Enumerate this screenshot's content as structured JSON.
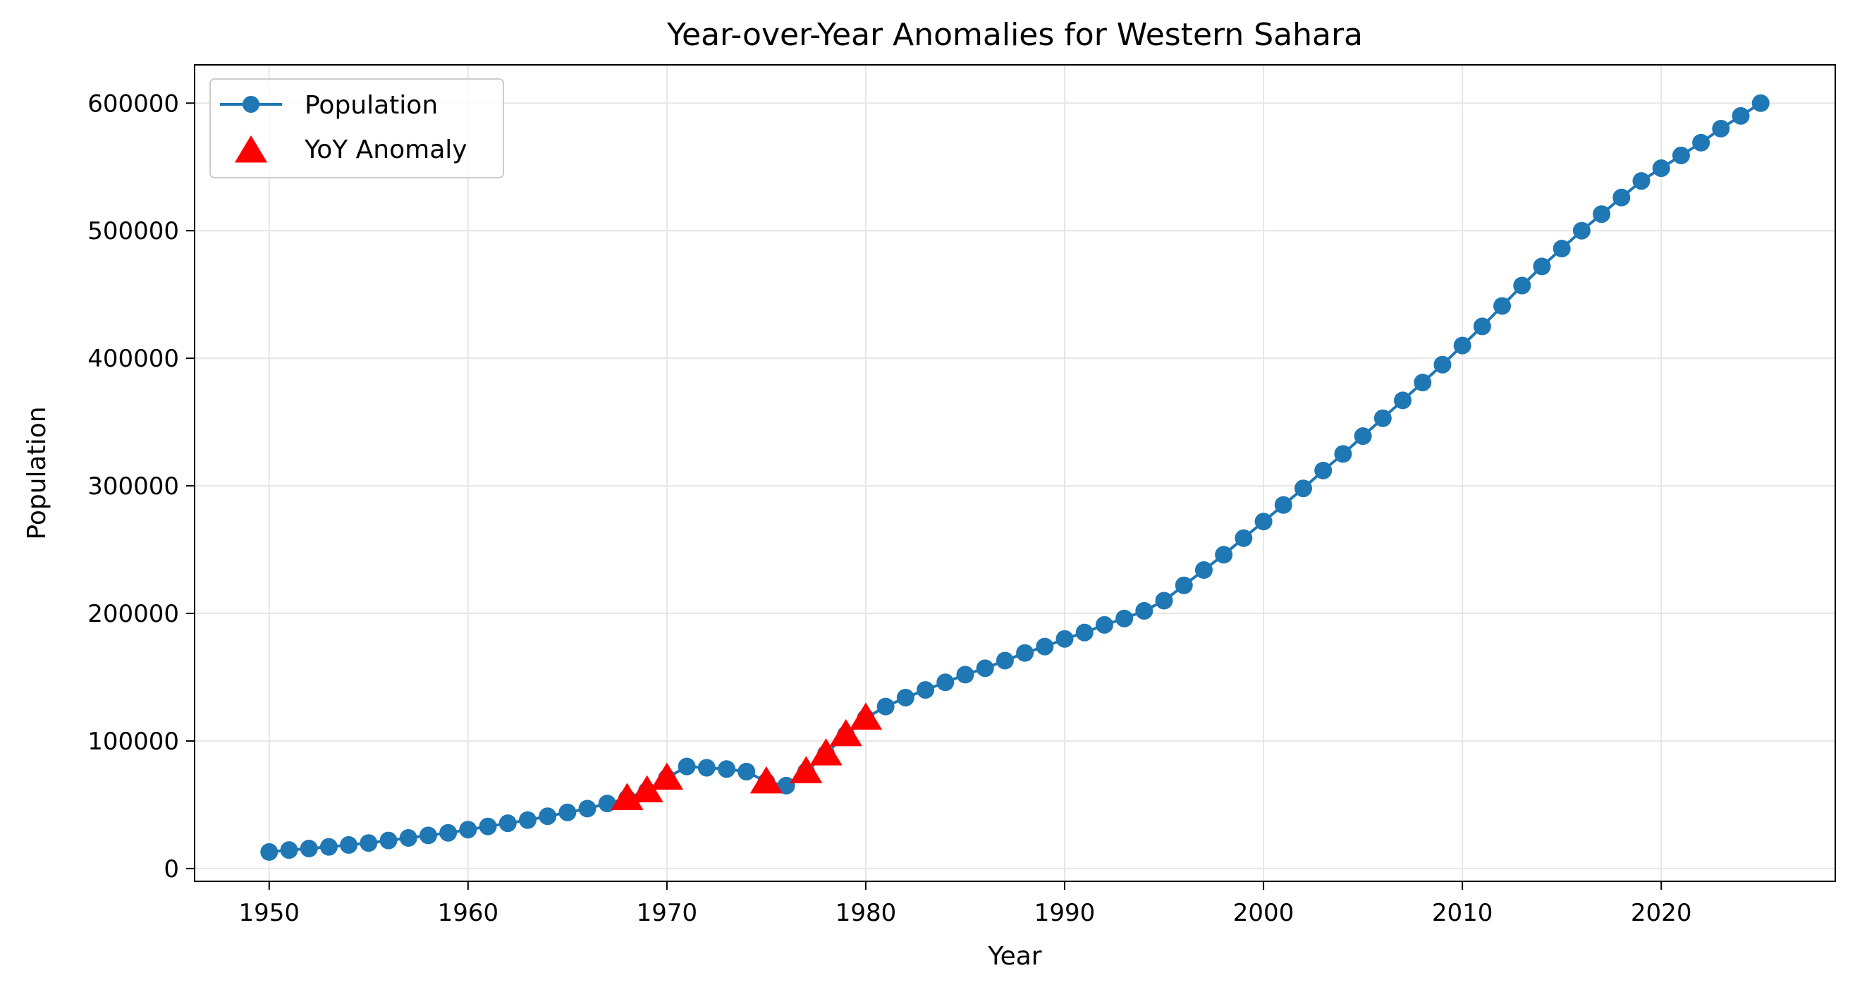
{
  "chart_data": {
    "type": "line",
    "title": "Year-over-Year Anomalies for Western Sahara",
    "xlabel": "Year",
    "ylabel": "Population",
    "xlim": [
      1946.25,
      2028.75
    ],
    "ylim": [
      -10000,
      630000
    ],
    "x_ticks": [
      1950,
      1960,
      1970,
      1980,
      1990,
      2000,
      2010,
      2020
    ],
    "y_ticks": [
      0,
      100000,
      200000,
      300000,
      400000,
      500000,
      600000
    ],
    "grid": true,
    "legend_position": "top-left",
    "colors": {
      "population": "#1f77b4",
      "anomaly": "#ff0000",
      "grid": "#e6e6e6"
    },
    "series": [
      {
        "name": "Population",
        "marker": "circle",
        "x": [
          1950,
          1951,
          1952,
          1953,
          1954,
          1955,
          1956,
          1957,
          1958,
          1959,
          1960,
          1961,
          1962,
          1963,
          1964,
          1965,
          1966,
          1967,
          1968,
          1969,
          1970,
          1971,
          1972,
          1973,
          1974,
          1975,
          1976,
          1977,
          1978,
          1979,
          1980,
          1981,
          1982,
          1983,
          1984,
          1985,
          1986,
          1987,
          1988,
          1989,
          1990,
          1991,
          1992,
          1993,
          1994,
          1995,
          1996,
          1997,
          1998,
          1999,
          2000,
          2001,
          2002,
          2003,
          2004,
          2005,
          2006,
          2007,
          2008,
          2009,
          2010,
          2011,
          2012,
          2013,
          2014,
          2015,
          2016,
          2017,
          2018,
          2019,
          2020,
          2021,
          2022,
          2023,
          2024,
          2025
        ],
        "y": [
          13000,
          14500,
          15700,
          17000,
          18500,
          20000,
          22000,
          24000,
          26000,
          28000,
          30500,
          33000,
          35500,
          38000,
          41000,
          44000,
          47000,
          51000,
          55000,
          61000,
          71000,
          80000,
          79000,
          78000,
          76000,
          68000,
          65000,
          76000,
          90000,
          105000,
          118000,
          127000,
          134000,
          140000,
          146000,
          152000,
          157000,
          163000,
          169000,
          174000,
          180000,
          185000,
          191000,
          196000,
          202000,
          210000,
          222000,
          234000,
          246000,
          259000,
          272000,
          285000,
          298000,
          312000,
          325000,
          339000,
          353000,
          367000,
          381000,
          395000,
          410000,
          425000,
          441000,
          457000,
          472000,
          486000,
          500000,
          513000,
          526000,
          539000,
          549000,
          559000,
          569000,
          580000,
          590000,
          600000
        ]
      },
      {
        "name": "YoY Anomaly",
        "marker": "triangle",
        "x": [
          1968,
          1969,
          1970,
          1975,
          1977,
          1978,
          1979,
          1980
        ],
        "y": [
          55000,
          61000,
          71000,
          68000,
          76000,
          90000,
          105000,
          118000
        ]
      }
    ]
  }
}
